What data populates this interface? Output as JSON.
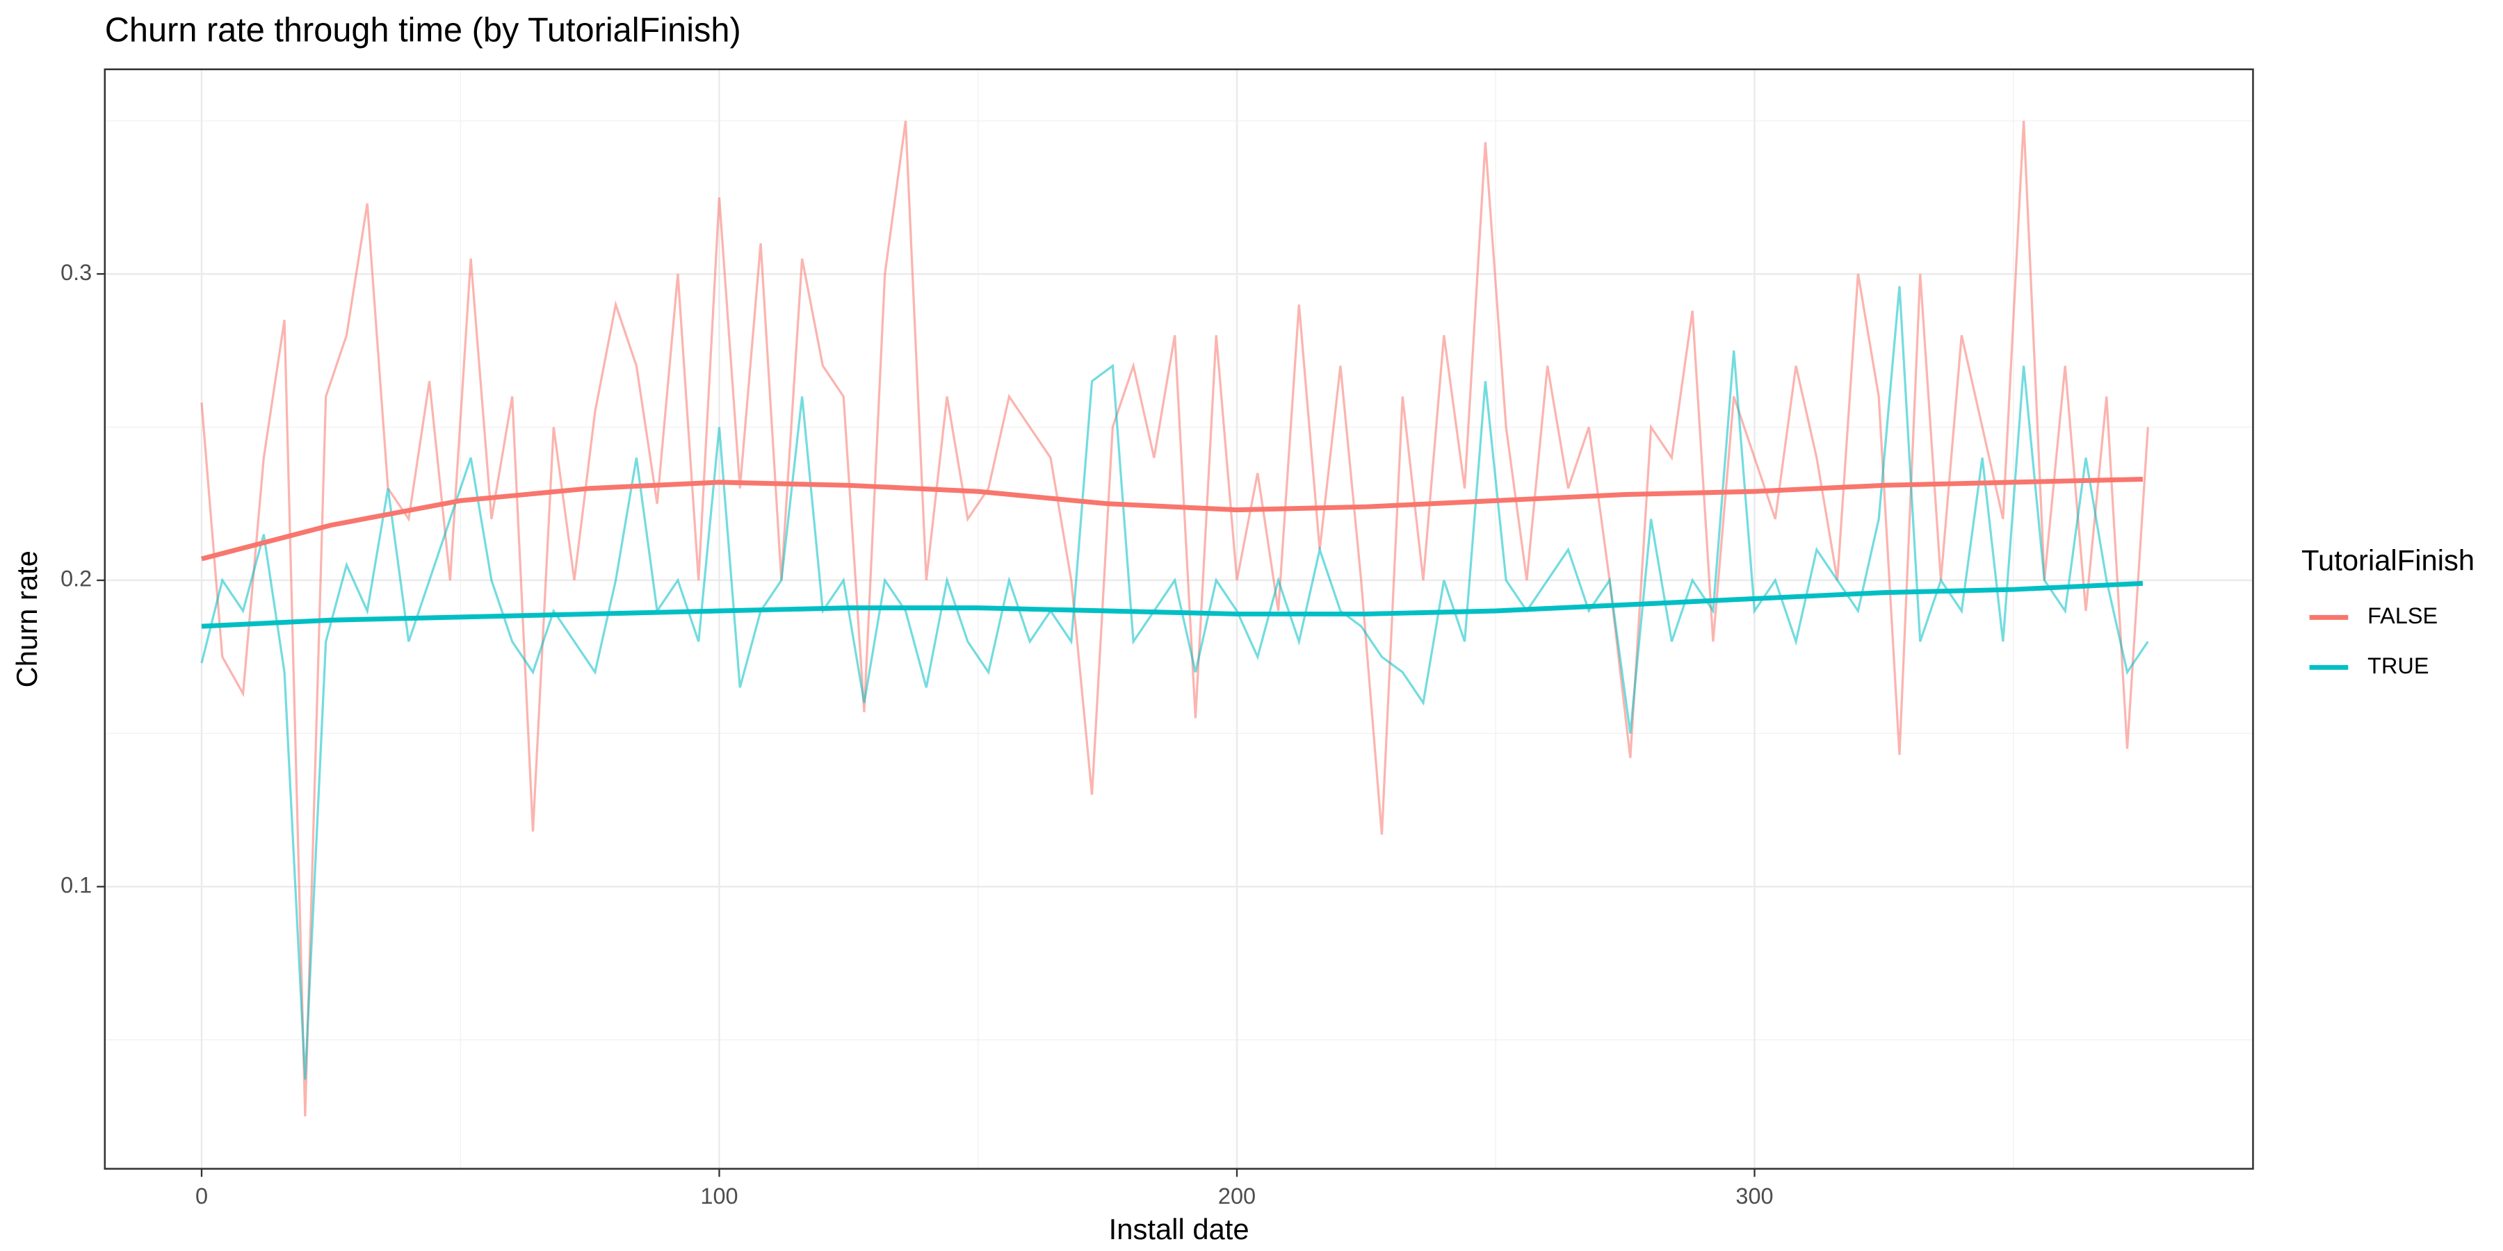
{
  "chart_data": {
    "type": "line",
    "title": "Churn rate through time (by TutorialFinish)",
    "x_label": "Install date",
    "y_label": "Churn rate",
    "legend_title": "TutorialFinish",
    "legend_position": "right",
    "grid": true,
    "xlim": [
      -18.7,
      396.3
    ],
    "xticks": [
      0,
      100,
      200,
      300
    ],
    "x_minor": [
      50,
      150,
      250,
      350
    ],
    "ylim": [
      0.0079,
      0.3668
    ],
    "yticks": [
      0.1,
      0.2,
      0.3
    ],
    "y_minor": [
      0.05,
      0.15,
      0.25,
      0.35
    ],
    "x": [
      0,
      4,
      8,
      12,
      16,
      20,
      24,
      28,
      32,
      36,
      40,
      44,
      48,
      52,
      56,
      60,
      64,
      68,
      72,
      76,
      80,
      84,
      88,
      92,
      96,
      100,
      104,
      108,
      112,
      116,
      120,
      124,
      128,
      132,
      136,
      140,
      144,
      148,
      152,
      156,
      160,
      164,
      168,
      172,
      176,
      180,
      184,
      188,
      192,
      196,
      200,
      204,
      208,
      212,
      216,
      220,
      224,
      228,
      232,
      236,
      240,
      244,
      248,
      252,
      256,
      260,
      264,
      268,
      272,
      276,
      280,
      284,
      288,
      292,
      296,
      300,
      304,
      308,
      312,
      316,
      320,
      324,
      328,
      332,
      336,
      340,
      344,
      348,
      352,
      356,
      360,
      364,
      368,
      372,
      376
    ],
    "series": [
      {
        "name": "FALSE",
        "color": "#F8766D",
        "values": [
          0.258,
          0.175,
          0.163,
          0.24,
          0.285,
          0.025,
          0.26,
          0.28,
          0.323,
          0.23,
          0.22,
          0.265,
          0.2,
          0.305,
          0.22,
          0.26,
          0.118,
          0.25,
          0.2,
          0.255,
          0.29,
          0.27,
          0.225,
          0.3,
          0.2,
          0.325,
          0.23,
          0.31,
          0.2,
          0.305,
          0.27,
          0.26,
          0.157,
          0.3,
          0.35,
          0.2,
          0.26,
          0.22,
          0.23,
          0.26,
          0.25,
          0.24,
          0.2,
          0.13,
          0.25,
          0.27,
          0.24,
          0.28,
          0.155,
          0.28,
          0.2,
          0.235,
          0.19,
          0.29,
          0.21,
          0.27,
          0.2,
          0.117,
          0.26,
          0.2,
          0.28,
          0.23,
          0.343,
          0.25,
          0.2,
          0.27,
          0.23,
          0.25,
          0.2,
          0.142,
          0.25,
          0.24,
          0.288,
          0.18,
          0.26,
          0.24,
          0.22,
          0.27,
          0.24,
          0.2,
          0.3,
          0.26,
          0.143,
          0.3,
          0.2,
          0.28,
          0.25,
          0.22,
          0.35,
          0.2,
          0.27,
          0.19,
          0.26,
          0.145,
          0.25
        ],
        "smooth": {
          "x": [
            0,
            25,
            50,
            75,
            100,
            125,
            150,
            175,
            200,
            225,
            250,
            275,
            300,
            325,
            350,
            375
          ],
          "values": [
            0.207,
            0.218,
            0.226,
            0.23,
            0.232,
            0.231,
            0.229,
            0.225,
            0.223,
            0.224,
            0.226,
            0.228,
            0.229,
            0.231,
            0.232,
            0.233
          ]
        }
      },
      {
        "name": "TRUE",
        "color": "#00BFC4",
        "values": [
          0.173,
          0.2,
          0.19,
          0.215,
          0.17,
          0.037,
          0.18,
          0.205,
          0.19,
          0.23,
          0.18,
          0.2,
          0.22,
          0.24,
          0.2,
          0.18,
          0.17,
          0.19,
          0.18,
          0.17,
          0.2,
          0.24,
          0.19,
          0.2,
          0.18,
          0.25,
          0.165,
          0.19,
          0.2,
          0.26,
          0.19,
          0.2,
          0.16,
          0.2,
          0.19,
          0.165,
          0.2,
          0.18,
          0.17,
          0.2,
          0.18,
          0.19,
          0.18,
          0.265,
          0.27,
          0.18,
          0.19,
          0.2,
          0.17,
          0.2,
          0.19,
          0.175,
          0.2,
          0.18,
          0.21,
          0.19,
          0.185,
          0.175,
          0.17,
          0.16,
          0.2,
          0.18,
          0.265,
          0.2,
          0.19,
          0.2,
          0.21,
          0.19,
          0.2,
          0.15,
          0.22,
          0.18,
          0.2,
          0.19,
          0.275,
          0.19,
          0.2,
          0.18,
          0.21,
          0.2,
          0.19,
          0.22,
          0.296,
          0.18,
          0.2,
          0.19,
          0.24,
          0.18,
          0.27,
          0.2,
          0.19,
          0.24,
          0.2,
          0.17,
          0.18
        ],
        "smooth": {
          "x": [
            0,
            25,
            50,
            75,
            100,
            125,
            150,
            175,
            200,
            225,
            250,
            275,
            300,
            325,
            350,
            375
          ],
          "values": [
            0.185,
            0.187,
            0.188,
            0.189,
            0.19,
            0.191,
            0.191,
            0.19,
            0.189,
            0.189,
            0.19,
            0.192,
            0.194,
            0.196,
            0.197,
            0.199
          ]
        }
      }
    ]
  }
}
